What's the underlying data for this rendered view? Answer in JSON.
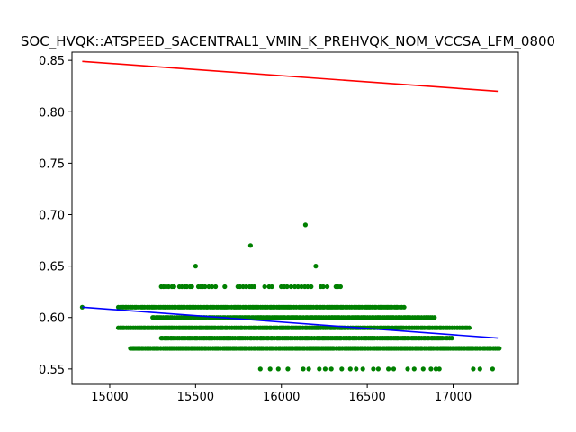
{
  "chart_data": {
    "type": "scatter",
    "title": "SOC_HVQK::ATSPEED_SACENTRAL1_VMIN_K_PREHVQK_NOM_VCCSA_LFM_0800",
    "xlabel": "",
    "ylabel": "",
    "xlim": [
      14780,
      17380
    ],
    "ylim": [
      0.535,
      0.858
    ],
    "xticks": [
      15000,
      15500,
      16000,
      16500,
      17000
    ],
    "yticks": [
      0.55,
      0.6,
      0.65,
      0.7,
      0.75,
      0.8,
      0.85
    ],
    "grid": false,
    "legend": "none",
    "points_color": "#008000",
    "scatter_bands": [
      {
        "y": 0.55,
        "x_min": 15820,
        "x_max": 17230,
        "density": "sparse"
      },
      {
        "y": 0.57,
        "x_min": 15120,
        "x_max": 17270,
        "density": "dense"
      },
      {
        "y": 0.58,
        "x_min": 15300,
        "x_max": 17000,
        "density": "dense"
      },
      {
        "y": 0.59,
        "x_min": 15050,
        "x_max": 17100,
        "density": "dense"
      },
      {
        "y": 0.6,
        "x_min": 15250,
        "x_max": 16900,
        "density": "dense"
      },
      {
        "y": 0.61,
        "x_min": 15050,
        "x_max": 16720,
        "density": "dense"
      },
      {
        "y": 0.63,
        "x_min": 15300,
        "x_max": 16350,
        "density": "medium"
      }
    ],
    "isolated_points": [
      {
        "x": 14840,
        "y": 0.61
      },
      {
        "x": 15500,
        "y": 0.65
      },
      {
        "x": 16200,
        "y": 0.65
      },
      {
        "x": 15820,
        "y": 0.67
      },
      {
        "x": 16140,
        "y": 0.69
      },
      {
        "x": 17230,
        "y": 0.55
      },
      {
        "x": 16900,
        "y": 0.55
      }
    ],
    "series": [
      {
        "color": "#ff0000",
        "x": [
          14840,
          17260
        ],
        "y": [
          0.849,
          0.82
        ]
      },
      {
        "color": "#0000ff",
        "x": [
          14840,
          17260
        ],
        "y": [
          0.61,
          0.58
        ]
      }
    ]
  }
}
